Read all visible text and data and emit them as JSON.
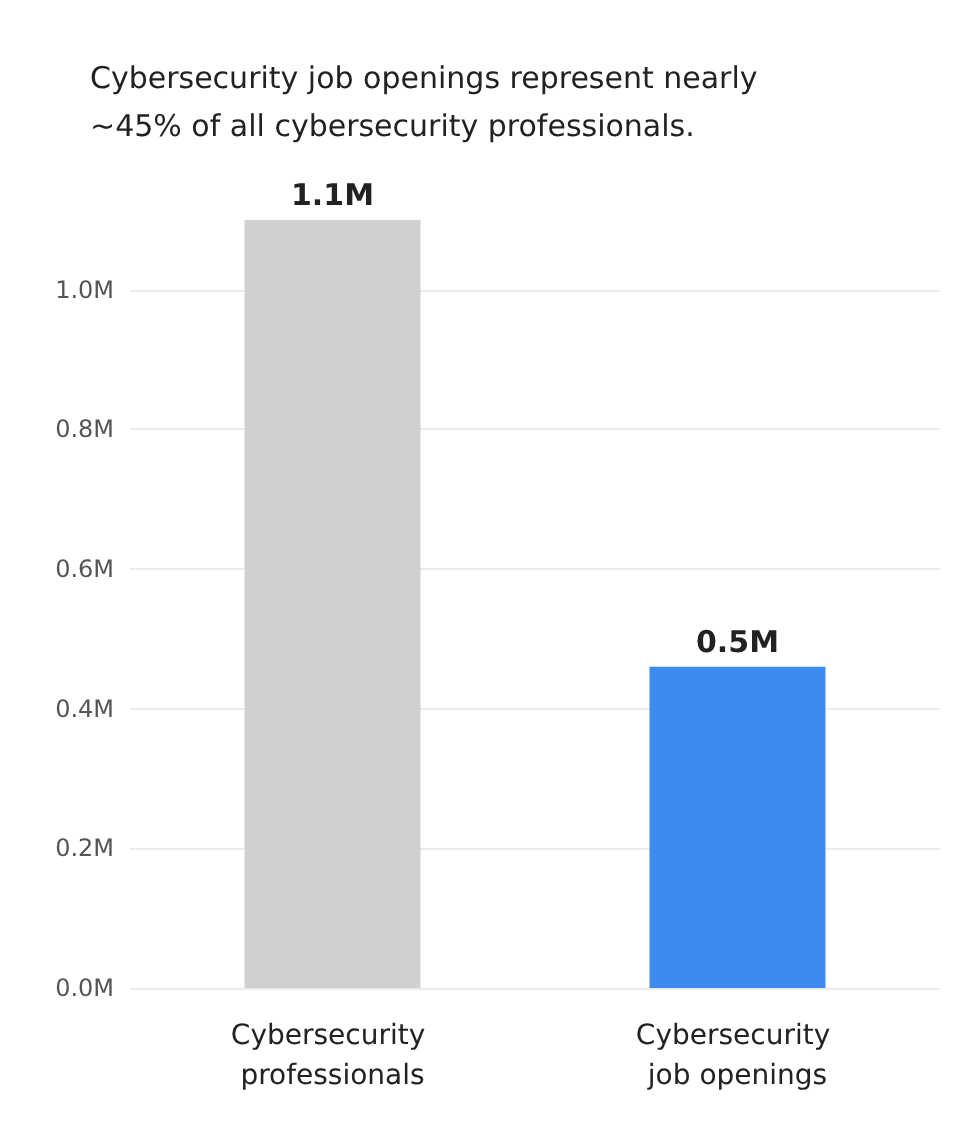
{
  "chart_data": {
    "type": "bar",
    "title": "Cybersecurity job openings represent nearly ~45% of all cybersecurity professionals.",
    "categories": [
      "Cybersecurity professionals",
      "Cybersecurity job openings"
    ],
    "values": [
      1.1,
      0.46
    ],
    "colors": [
      "#d0d0d0",
      "#3d8bf0"
    ],
    "value_labels": [
      "1.1M",
      "0.5M"
    ],
    "ylim": [
      0,
      1.1
    ],
    "yticks": [
      {
        "value": 0,
        "label": "0.0M"
      },
      {
        "value": 0.2,
        "label": "0.2M"
      },
      {
        "value": 0.4,
        "label": "0.4M"
      },
      {
        "value": 0.6,
        "label": "0.6M"
      },
      {
        "value": 0.8,
        "label": "0.8M"
      },
      {
        "value": 1.0,
        "label": "1.0M"
      }
    ],
    "grid": "y"
  }
}
